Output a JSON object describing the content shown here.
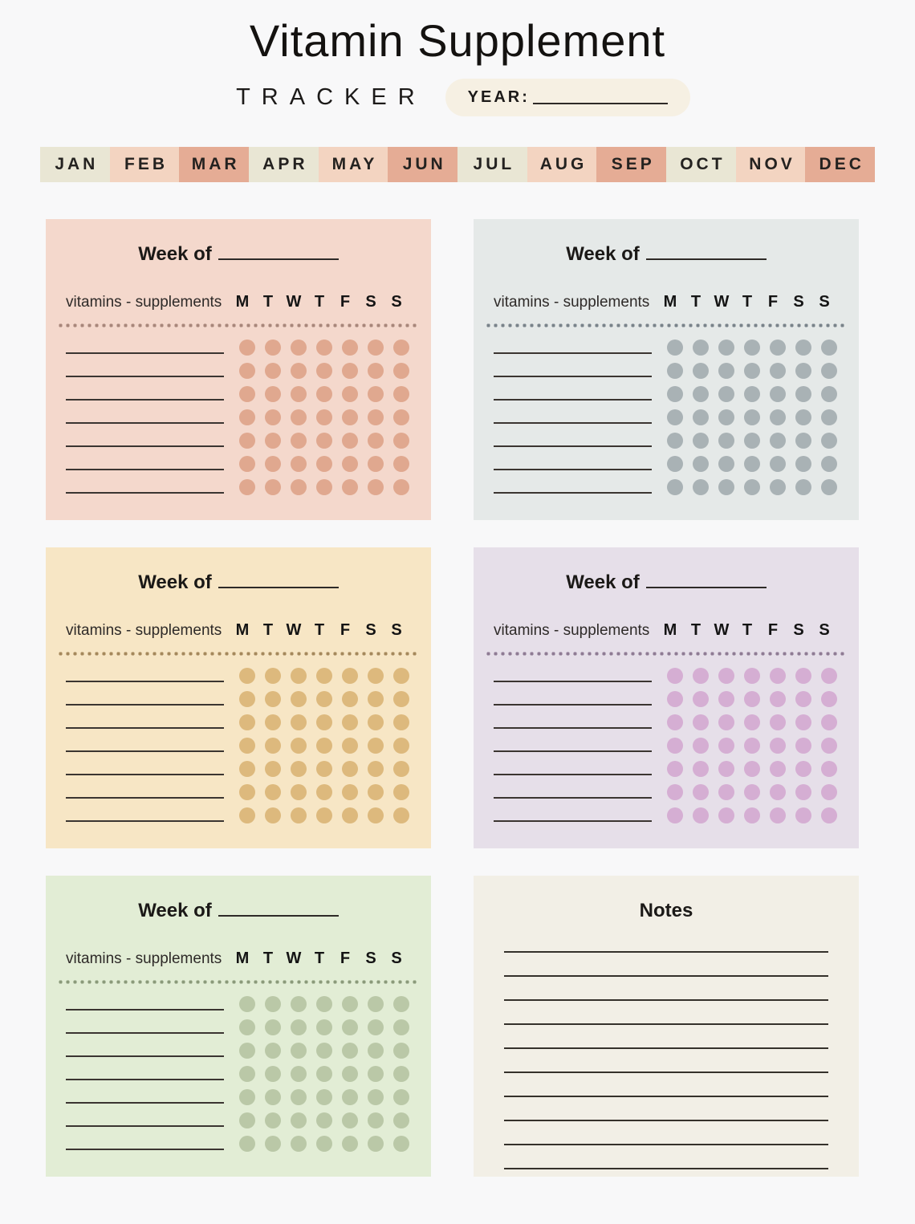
{
  "header": {
    "title": "Vitamin Supplement",
    "subtitle": "TRACKER",
    "year_label": "YEAR:"
  },
  "colors": {
    "page_bg": "#f8f8f9",
    "ink": "#1c1a19",
    "year_pill_bg": "#f6f0e3",
    "write_line": "#3b3531"
  },
  "months": {
    "items": [
      "JAN",
      "FEB",
      "MAR",
      "APR",
      "MAY",
      "JUN",
      "JUL",
      "AUG",
      "SEP",
      "OCT",
      "NOV",
      "DEC"
    ],
    "cell_colors": [
      "#e9e6d4",
      "#f3d4c1",
      "#e5ac95",
      "#e9e6d4",
      "#f3d4c1",
      "#e5ac95",
      "#e9e6d4",
      "#f3d4c1",
      "#e5ac95",
      "#e9e6d4",
      "#f3d4c1",
      "#e5ac95"
    ]
  },
  "week_card": {
    "title_label": "Week of",
    "column_header": "vitamins - supplements",
    "day_headers": [
      "M",
      "T",
      "W",
      "T",
      "F",
      "S",
      "S"
    ],
    "row_count": 7
  },
  "week_cards": [
    {
      "name": "week-card-1",
      "bg": "#f4d8cc",
      "dot": "#e0a88f",
      "separator": "#a8867a"
    },
    {
      "name": "week-card-2",
      "bg": "#e5e9e8",
      "dot": "#a9b2b5",
      "separator": "#79838a"
    },
    {
      "name": "week-card-3",
      "bg": "#f7e6c5",
      "dot": "#ddb97d",
      "separator": "#a5885c"
    },
    {
      "name": "week-card-4",
      "bg": "#e6dfe9",
      "dot": "#d5aed3",
      "separator": "#8f7b94"
    },
    {
      "name": "week-card-5",
      "bg": "#e2edd5",
      "dot": "#bac8a7",
      "separator": "#8b9a7a"
    }
  ],
  "notes_card": {
    "title": "Notes",
    "bg": "#f2efe6",
    "line_count": 10
  }
}
